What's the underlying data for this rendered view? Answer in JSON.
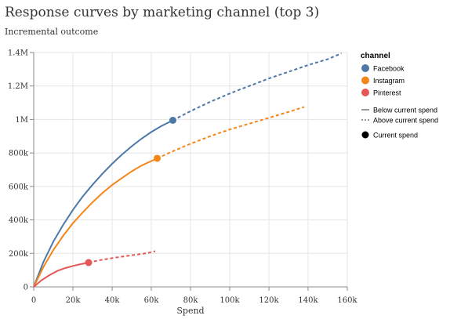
{
  "chart_data": {
    "type": "line",
    "title": "Response curves by marketing channel (top 3)",
    "ylabel": "Incremental outcome",
    "xlabel": "Spend",
    "xlim": [
      0,
      160000
    ],
    "ylim": [
      0,
      1400000
    ],
    "x_ticks": [
      0,
      20000,
      40000,
      60000,
      80000,
      100000,
      120000,
      140000,
      160000
    ],
    "x_tick_labels": [
      "0",
      "20k",
      "40k",
      "60k",
      "80k",
      "100k",
      "120k",
      "140k",
      "160k"
    ],
    "y_ticks": [
      0,
      200000,
      400000,
      600000,
      800000,
      1000000,
      1200000,
      1400000
    ],
    "y_tick_labels": [
      "0",
      "200k",
      "400k",
      "600k",
      "800k",
      "1M",
      "1.2M",
      "1.4M"
    ],
    "grid": true,
    "legend": {
      "position": "right",
      "color_title": "channel",
      "style_labels": [
        "Below current spend",
        "Above current spend"
      ],
      "marker_label": "Current spend"
    },
    "series": [
      {
        "name": "Facebook",
        "color": "#4c78a8",
        "points": [
          [
            0,
            0
          ],
          [
            5000,
            150000
          ],
          [
            10000,
            270000
          ],
          [
            15000,
            370000
          ],
          [
            20000,
            460000
          ],
          [
            25000,
            540000
          ],
          [
            30000,
            610000
          ],
          [
            35000,
            675000
          ],
          [
            40000,
            735000
          ],
          [
            45000,
            790000
          ],
          [
            50000,
            840000
          ],
          [
            55000,
            885000
          ],
          [
            60000,
            925000
          ],
          [
            65000,
            960000
          ],
          [
            71000,
            995000
          ],
          [
            80000,
            1050000
          ],
          [
            90000,
            1105000
          ],
          [
            100000,
            1155000
          ],
          [
            110000,
            1200000
          ],
          [
            120000,
            1245000
          ],
          [
            130000,
            1285000
          ],
          [
            140000,
            1325000
          ],
          [
            150000,
            1360000
          ],
          [
            157000,
            1395000
          ]
        ],
        "current_spend": {
          "x": 71000,
          "y": 995000
        }
      },
      {
        "name": "Instagram",
        "color": "#f58518",
        "points": [
          [
            0,
            0
          ],
          [
            5000,
            120000
          ],
          [
            10000,
            220000
          ],
          [
            15000,
            305000
          ],
          [
            20000,
            380000
          ],
          [
            25000,
            445000
          ],
          [
            30000,
            505000
          ],
          [
            35000,
            560000
          ],
          [
            40000,
            608000
          ],
          [
            45000,
            650000
          ],
          [
            50000,
            690000
          ],
          [
            55000,
            725000
          ],
          [
            63000,
            768000
          ],
          [
            70000,
            805000
          ],
          [
            80000,
            855000
          ],
          [
            90000,
            900000
          ],
          [
            100000,
            940000
          ],
          [
            110000,
            975000
          ],
          [
            120000,
            1010000
          ],
          [
            130000,
            1045000
          ],
          [
            138000,
            1075000
          ]
        ],
        "current_spend": {
          "x": 63000,
          "y": 768000
        }
      },
      {
        "name": "Pinterest",
        "color": "#e45756",
        "points": [
          [
            0,
            0
          ],
          [
            4000,
            40000
          ],
          [
            8000,
            70000
          ],
          [
            12000,
            95000
          ],
          [
            16000,
            112000
          ],
          [
            20000,
            125000
          ],
          [
            24000,
            136000
          ],
          [
            28000,
            145000
          ],
          [
            34000,
            160000
          ],
          [
            40000,
            172000
          ],
          [
            46000,
            182000
          ],
          [
            52000,
            192000
          ],
          [
            58000,
            202000
          ],
          [
            62000,
            213000
          ]
        ],
        "current_spend": {
          "x": 28000,
          "y": 145000
        }
      }
    ]
  }
}
